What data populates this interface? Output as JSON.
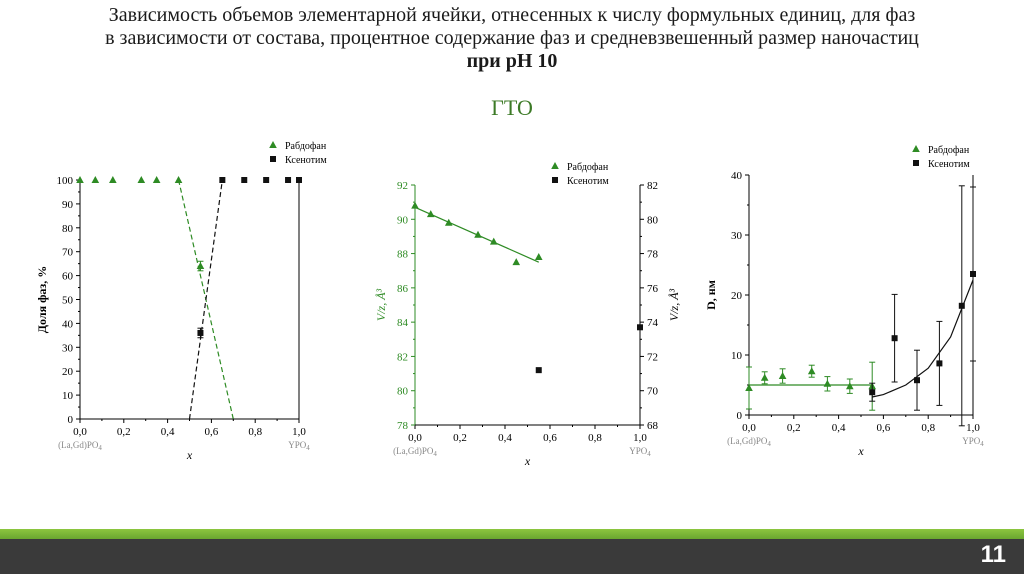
{
  "slide": {
    "title_line1": "Зависимость объемов элементарной ячейки, отнесенных к числу формульных единиц, для фаз",
    "title_line2": "в зависимости от состава, процентное содержание фаз и средневзвешенный размер наночастиц",
    "title_line3": "при pH 10",
    "subtitle": "ГТО",
    "page_number": "11"
  },
  "colors": {
    "green": "#2e8b24",
    "black": "#111111",
    "accent_bar": "#7ab83a",
    "footer": "#3a3a3a"
  },
  "chart_data": [
    {
      "type": "line",
      "ylabel": "Доля фаз, %",
      "xlabel": "x",
      "x_tick_labels": [
        "0,0",
        "0,2",
        "0,4",
        "0,6",
        "0,8",
        "1,0"
      ],
      "y_tick_labels": [
        "0",
        "10",
        "20",
        "30",
        "40",
        "50",
        "60",
        "70",
        "80",
        "90",
        "100"
      ],
      "xlim": [
        0,
        1
      ],
      "ylim": [
        0,
        100
      ],
      "end_labels": {
        "left": "(La,Gd)PO",
        "left_sub": "4",
        "right": "YPO",
        "right_sub": "4"
      },
      "legend": {
        "position": "top-right"
      },
      "series": [
        {
          "name": "Рабдофан",
          "color": "green",
          "marker": "triangle",
          "x": [
            0,
            0.07,
            0.15,
            0.28,
            0.35,
            0.45,
            0.55
          ],
          "y": [
            100,
            100,
            100,
            100,
            100,
            100,
            64
          ],
          "yerr": [
            0,
            0,
            0,
            0,
            0,
            0,
            2
          ],
          "fit_x": [
            0.45,
            0.7
          ],
          "fit_y": [
            100,
            0
          ]
        },
        {
          "name": "Ксенотим",
          "color": "black",
          "marker": "square",
          "x": [
            0.55,
            0.65,
            0.75,
            0.85,
            0.95,
            1.0
          ],
          "y": [
            36,
            100,
            100,
            100,
            100,
            100
          ],
          "yerr": [
            2,
            0,
            0,
            0,
            0,
            0
          ],
          "fit_x": [
            0.5,
            0.65
          ],
          "fit_y": [
            0,
            100
          ]
        }
      ]
    },
    {
      "type": "scatter",
      "ylabel_left": "V/z, Å³",
      "ylabel_right": "V/z, Å³",
      "xlabel": "x",
      "x_tick_labels": [
        "0,0",
        "0,2",
        "0,4",
        "0,6",
        "0,8",
        "1,0"
      ],
      "y_left_tick_labels": [
        "78",
        "80",
        "82",
        "84",
        "86",
        "88",
        "90",
        "92"
      ],
      "y_right_tick_labels": [
        "68",
        "70",
        "72",
        "74",
        "76",
        "78",
        "80",
        "82"
      ],
      "xlim": [
        0,
        1
      ],
      "ylim_left": [
        78,
        92
      ],
      "ylim_right": [
        68,
        82
      ],
      "end_labels": {
        "left": "(La,Gd)PO",
        "left_sub": "4",
        "right": "YPO",
        "right_sub": "4"
      },
      "legend": {
        "position": "top-right"
      },
      "series": [
        {
          "name": "Рабдофан",
          "color": "green",
          "marker": "triangle",
          "axis": "left",
          "x": [
            0,
            0.07,
            0.15,
            0.28,
            0.35,
            0.45,
            0.55
          ],
          "y": [
            90.8,
            90.3,
            89.8,
            89.1,
            88.7,
            87.5,
            87.8
          ],
          "fit_x": [
            0,
            0.55
          ],
          "fit_y": [
            90.7,
            87.5
          ]
        },
        {
          "name": "Ксенотим",
          "color": "black",
          "marker": "square",
          "axis": "right",
          "x": [
            0.55,
            1.0
          ],
          "y": [
            71.2,
            73.7
          ]
        }
      ]
    },
    {
      "type": "scatter",
      "ylabel": "D, нм",
      "xlabel": "x",
      "x_tick_labels": [
        "0,0",
        "0,2",
        "0,4",
        "0,6",
        "0,8",
        "1,0"
      ],
      "y_tick_labels": [
        "0",
        "10",
        "20",
        "30",
        "40"
      ],
      "xlim": [
        0,
        1
      ],
      "ylim": [
        0,
        40
      ],
      "end_labels": {
        "left": "(La,Gd)PO",
        "left_sub": "4",
        "right": "YPO",
        "right_sub": "4"
      },
      "legend": {
        "position": "top-right"
      },
      "series": [
        {
          "name": "Рабдофан",
          "color": "green",
          "marker": "triangle",
          "x": [
            0,
            0.07,
            0.15,
            0.28,
            0.35,
            0.45,
            0.55
          ],
          "y": [
            4.5,
            6.2,
            6.5,
            7.3,
            5.2,
            4.8,
            4.8
          ],
          "yerr": [
            3.5,
            1,
            1.2,
            1,
            1.2,
            1.2,
            4
          ],
          "fit_x": [
            0,
            0.55
          ],
          "fit_y": [
            5,
            5
          ]
        },
        {
          "name": "Ксенотим",
          "color": "black",
          "marker": "square",
          "x": [
            0.55,
            0.65,
            0.75,
            0.85,
            0.95,
            1.0
          ],
          "y": [
            3.8,
            12.8,
            5.8,
            8.6,
            18.2,
            23.5
          ],
          "yerr": [
            1.5,
            7.3,
            5,
            7,
            20,
            14.5
          ],
          "fit_curve": "exponential",
          "fit_x": [
            0.55,
            0.6,
            0.7,
            0.8,
            0.9,
            1.0
          ],
          "fit_y": [
            3,
            3.4,
            5,
            7.8,
            13,
            22.5
          ]
        }
      ]
    }
  ]
}
